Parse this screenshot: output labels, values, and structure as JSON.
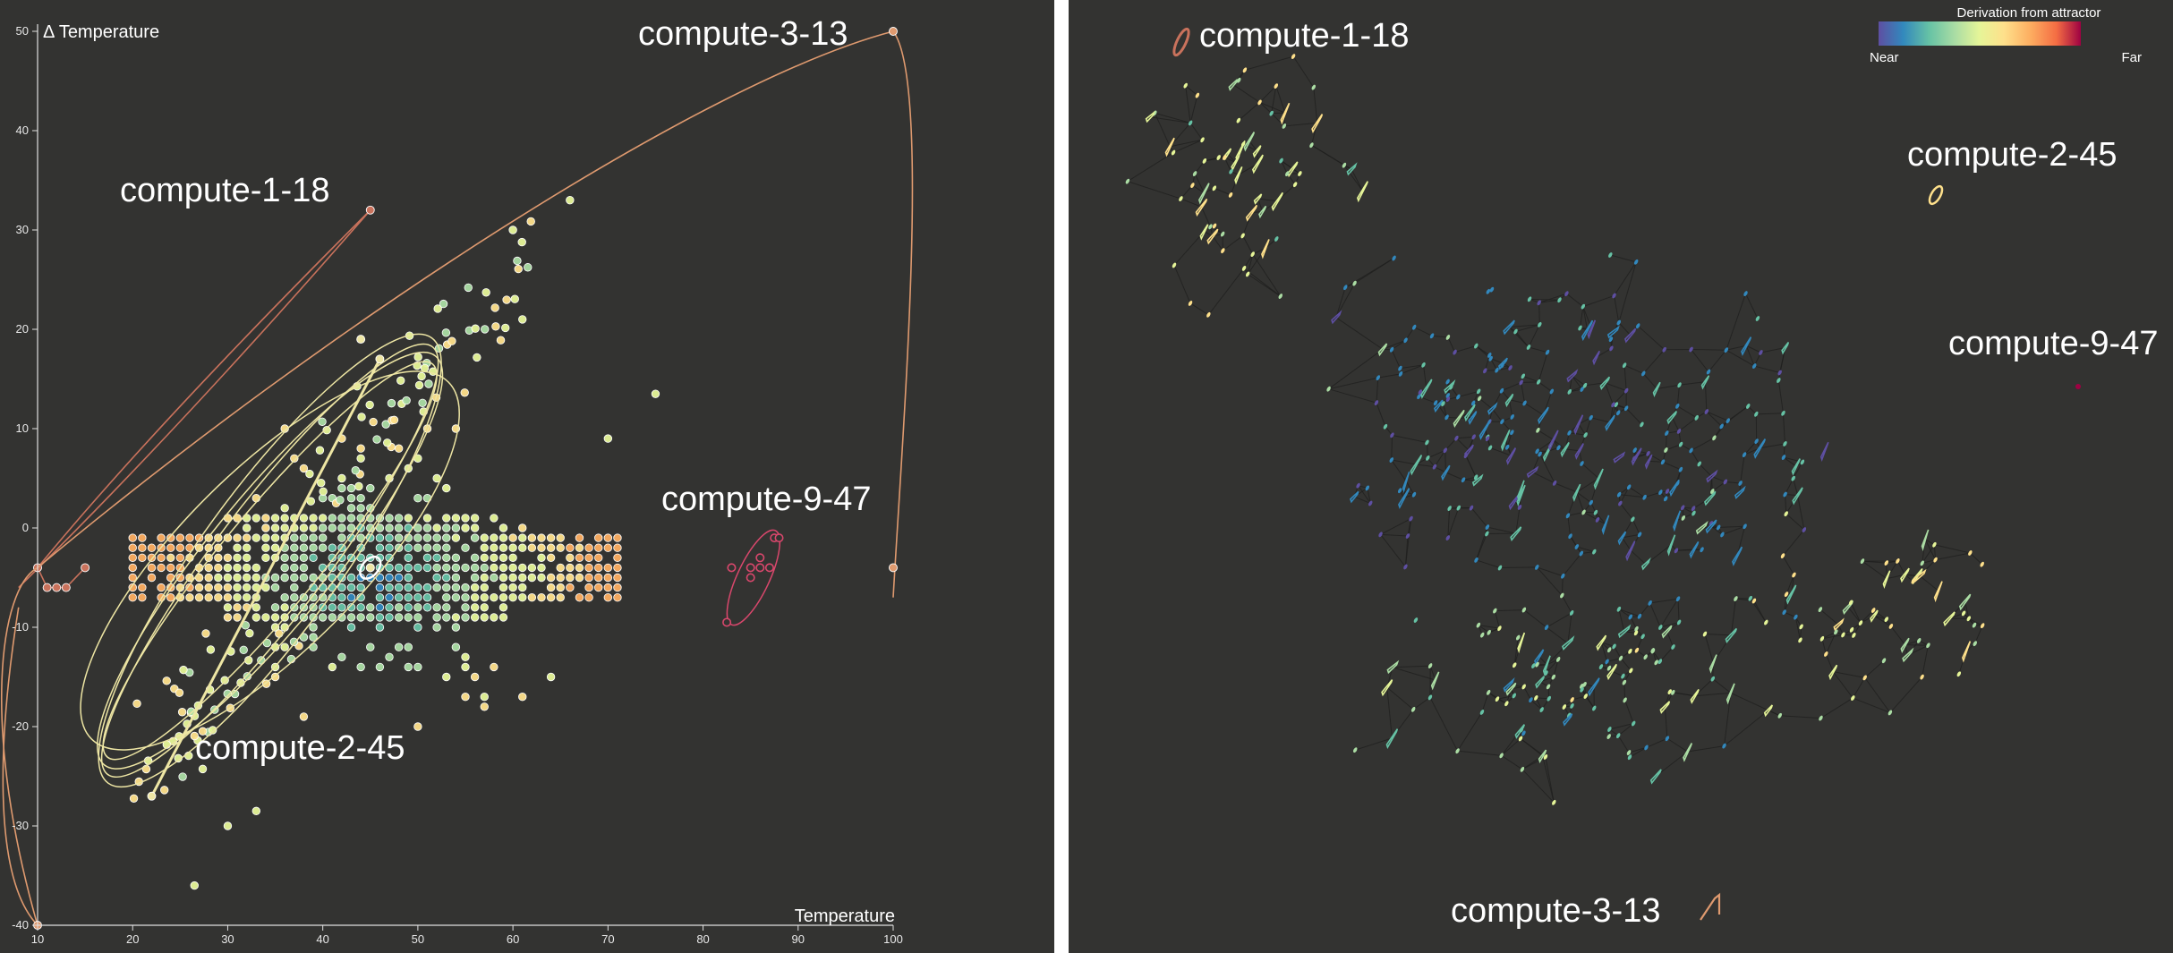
{
  "chart_data": [
    {
      "type": "scatter",
      "title": "",
      "xlabel": "Temperature",
      "ylabel": "Δ Temperature",
      "xlim": [
        10,
        100
      ],
      "ylim": [
        -40,
        50
      ],
      "x_ticks": [
        10,
        20,
        30,
        40,
        50,
        60,
        70,
        80,
        90,
        100
      ],
      "y_ticks": [
        -40,
        -30,
        -20,
        -10,
        0,
        10,
        20,
        30,
        40,
        50
      ],
      "grid": false,
      "color_scale": [
        "#5e4fa2",
        "#3288bd",
        "#66c2a5",
        "#abdda4",
        "#e6f598",
        "#fee08b",
        "#fdae61",
        "#f46d43",
        "#d53e4f",
        "#9e0142"
      ],
      "point_stroke": "#ffffff",
      "annotations": [
        {
          "name": "compute-1-18",
          "color": "#c9725c",
          "points": [
            [
              10,
              -4
            ],
            [
              11,
              -6
            ],
            [
              12,
              -6
            ],
            [
              13,
              -6
            ],
            [
              15,
              -4
            ],
            [
              45,
              32
            ]
          ]
        },
        {
          "name": "compute-2-45",
          "color": "#eee6a4",
          "points": [
            [
              45,
              -4
            ],
            [
              44,
              19
            ],
            [
              22,
              -27
            ],
            [
              46,
              17
            ],
            [
              45,
              -4
            ]
          ]
        },
        {
          "name": "compute-3-13",
          "color": "#df9a6f",
          "points": [
            [
              10,
              -40
            ],
            [
              100,
              50
            ],
            [
              100,
              -4
            ]
          ]
        },
        {
          "name": "compute-9-47",
          "color": "#d9476c",
          "points": [
            [
              82.5,
              -9.5
            ],
            [
              83,
              -4
            ],
            [
              85,
              -4
            ],
            [
              86,
              -3
            ],
            [
              85,
              -5
            ],
            [
              86,
              -4
            ],
            [
              87,
              -4
            ],
            [
              87.5,
              -1
            ],
            [
              88,
              -1
            ]
          ]
        }
      ]
    },
    {
      "type": "scatter",
      "title": "",
      "xlabel": "",
      "ylabel": "",
      "grid": false,
      "legend": {
        "title": "Derivation from attractor",
        "low_label": "Near",
        "high_label": "Far",
        "placement": "top-right"
      },
      "node_labels": [
        "compute-1-18",
        "compute-2-45",
        "compute-9-47",
        "compute-3-13"
      ]
    }
  ]
}
